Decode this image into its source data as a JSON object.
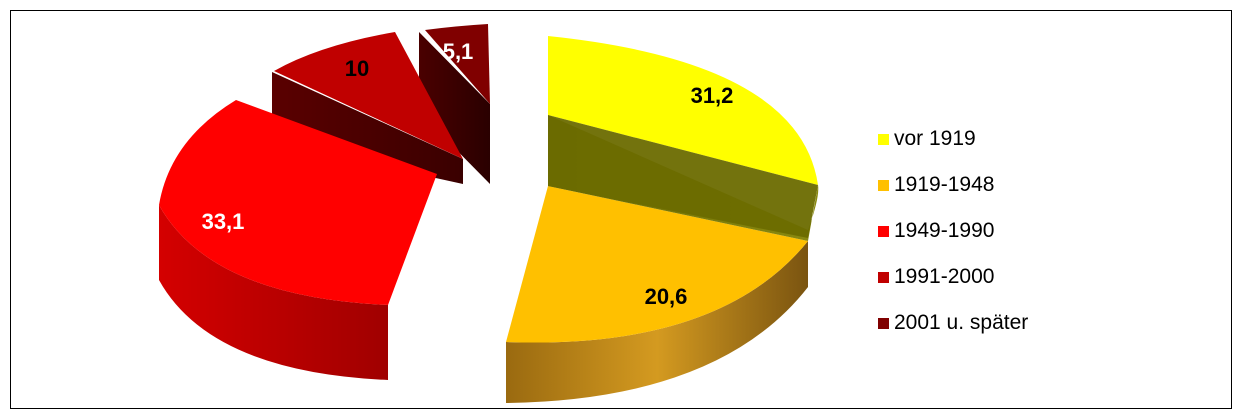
{
  "chart_data": {
    "type": "pie",
    "style": "3d-exploded",
    "categories": [
      "vor 1919",
      "1919-1948",
      "1949-1990",
      "1991-2000",
      "2001 u. später"
    ],
    "values": [
      31.2,
      20.6,
      33.1,
      10,
      5.1
    ],
    "labels": [
      "31,2",
      "20,6",
      "33,1",
      "10",
      "5,1"
    ],
    "colors": [
      "#ffff00",
      "#ffc000",
      "#ff0000",
      "#c00000",
      "#800000"
    ],
    "legend_position": "right"
  }
}
